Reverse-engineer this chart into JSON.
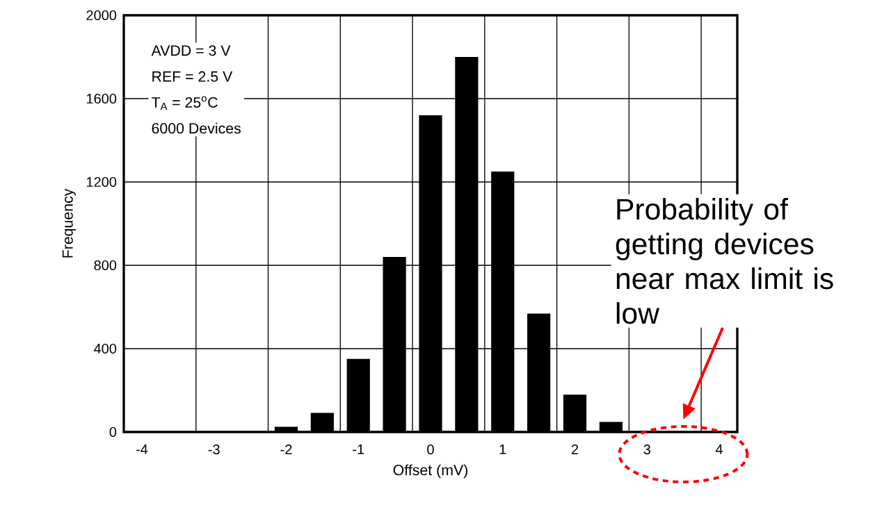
{
  "chart_data": {
    "type": "bar",
    "xlabel": "Offset (mV)",
    "ylabel": "Frequency",
    "x": [
      -2,
      -1.5,
      -1,
      -0.5,
      0,
      0.5,
      1,
      1.5,
      2,
      2.5
    ],
    "values": [
      25,
      92,
      351,
      840,
      1520,
      1800,
      1250,
      568,
      179,
      48
    ],
    "color": "#000000",
    "xlim": [
      -4.25,
      4.25
    ],
    "ylim": [
      0,
      2000
    ],
    "xticks": [
      -4,
      -3,
      -2,
      -1,
      0,
      1,
      2,
      3,
      4,
      {
        "value": -3.25,
        "label": null
      },
      {
        "value": -2.25,
        "label": null
      },
      {
        "value": -1.25,
        "label": null
      },
      {
        "value": -0.25,
        "label": null
      },
      {
        "value": 0.75,
        "label": null
      },
      {
        "value": 1.75,
        "label": null
      },
      {
        "value": 2.75,
        "label": null
      },
      {
        "value": 3.75,
        "label": null
      }
    ],
    "yticks": [
      0,
      400,
      800,
      1200,
      1600,
      2000
    ],
    "grid": true,
    "annotations": [
      "AVDD = 3 V",
      "REF = 2.5 V",
      "T$_{A}$ = 25$^{o}$C",
      "6000 Devices",
      "Probability of getting devices near max limit is low"
    ]
  }
}
